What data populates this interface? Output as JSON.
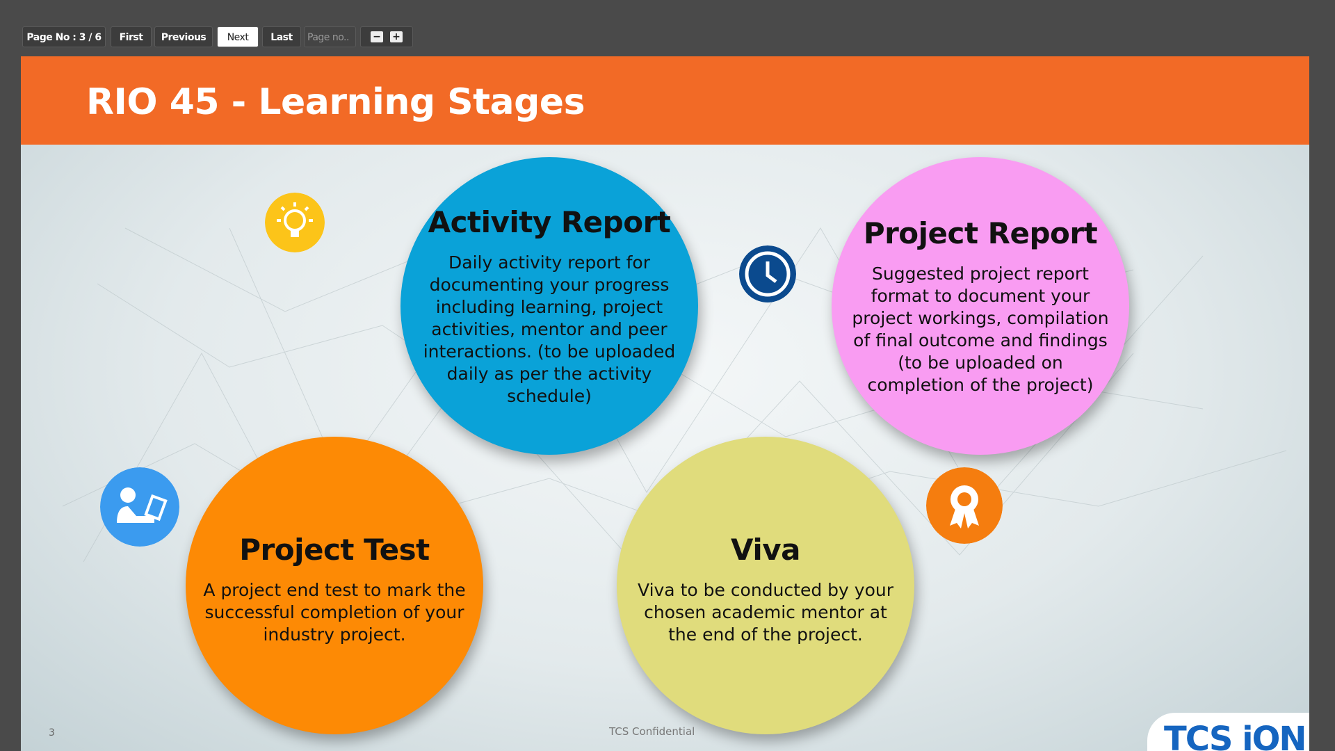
{
  "toolbar": {
    "page_info": "Page No : 3 / 6",
    "buttons": [
      "First",
      "Previous",
      "Next",
      "Last"
    ],
    "page_input_placeholder": "Page no..",
    "zoom": [
      "−",
      "+"
    ]
  },
  "slide": {
    "title": "RIO 45 - Learning Stages",
    "stages": [
      {
        "title": "Activity Report",
        "body": "Daily activity report for documenting your progress including learning, project activities, mentor and peer interactions. (to be uploaded daily as per the activity schedule)"
      },
      {
        "title": "Project Report",
        "body": "Suggested project report format to document your project workings, compilation of final outcome and findings (to be uploaded on completion of the project)"
      },
      {
        "title": "Project Test",
        "body": "A project end test to mark the successful completion of your industry project."
      },
      {
        "title": "Viva",
        "body": "Viva to be conducted by your chosen academic mentor at the end of the project."
      }
    ],
    "page_number": "3",
    "footer": "TCS Confidential",
    "logo": "TCS iON"
  }
}
